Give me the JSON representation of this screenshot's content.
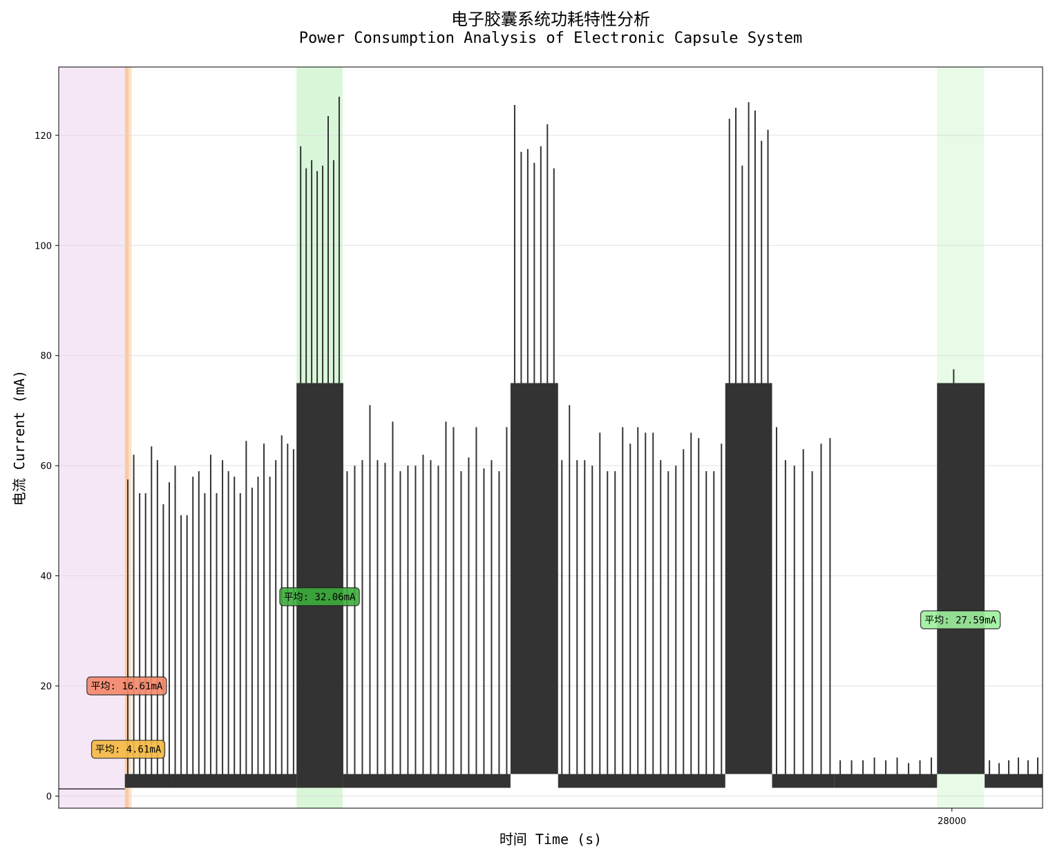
{
  "chart_data": {
    "type": "line",
    "title": "电子胶囊系统功耗特性分析",
    "subtitle": "Power Consumption Analysis of Electronic Capsule System",
    "xlabel": "时间 Time (s)",
    "ylabel": "电流 Current (mA)",
    "ylim": [
      -2.2,
      132.4
    ],
    "yticks": [
      0,
      20,
      40,
      60,
      80,
      100,
      120
    ],
    "xticks": [
      {
        "value": 28000,
        "label": "28000"
      }
    ],
    "xlim": [
      21990,
      28610
    ],
    "grid": true,
    "line_color": "#333333",
    "background_bands": [
      {
        "start": 21990,
        "end": 22435,
        "color": "#f5e6f7",
        "mean_label": ""
      },
      {
        "start": 22435,
        "end": 22480,
        "color": "#fde0c2",
        "mean_label": "平均: 4.61mA",
        "label_value": 8.5,
        "label_color": "#f5b942"
      },
      {
        "start": 22435,
        "end": 22460,
        "color": "#f8c9a8",
        "mean_label": "平均: 16.61mA",
        "label_value": 20,
        "label_color": "#f4876a"
      },
      {
        "start": 23590,
        "end": 23900,
        "color": "#d7f5d7",
        "mean_label": "平均: 32.06mA",
        "label_value": 36.2,
        "label_color": "#3cae3c"
      },
      {
        "start": 27900,
        "end": 28215,
        "color": "#e6fbe6",
        "mean_label": "平均: 27.59mA",
        "label_value": 32,
        "label_color": "#9df09d"
      }
    ],
    "segments": [
      {
        "type": "idle",
        "start": 21990,
        "end": 22435,
        "level": 1.3
      },
      {
        "type": "pulse",
        "start": 22435,
        "end": 23590,
        "base": 1.5,
        "base_top": 4.0,
        "peaks": [
          57.5,
          62,
          55,
          55,
          63.5,
          61,
          53,
          57,
          60,
          51,
          51,
          58,
          59,
          55,
          62,
          55,
          61,
          59,
          58,
          55,
          64.5,
          56,
          58,
          64,
          58,
          61,
          65.5,
          64,
          63
        ]
      },
      {
        "type": "burst",
        "start": 23590,
        "end": 23905,
        "base": 1.5,
        "fill_top": 75,
        "peaks": [
          118,
          114,
          115.5,
          113.5,
          114.5,
          123.5,
          115.5,
          127
        ]
      },
      {
        "type": "pulse",
        "start": 23905,
        "end": 25030,
        "base": 1.5,
        "base_top": 4.0,
        "peaks": [
          59,
          60,
          61,
          71,
          61,
          60.5,
          68,
          59,
          60,
          60,
          62,
          61,
          60,
          68,
          67,
          59,
          61.5,
          67,
          59.5,
          61,
          59,
          67
        ]
      },
      {
        "type": "burst",
        "start": 25030,
        "end": 25350,
        "base": 4,
        "fill_top": 75,
        "peaks": [
          125.5,
          117,
          117.5,
          115,
          118,
          122,
          114
        ]
      },
      {
        "type": "pulse",
        "start": 25350,
        "end": 26475,
        "base": 1.5,
        "base_top": 4.0,
        "peaks": [
          61,
          71,
          61,
          61,
          60,
          66,
          59,
          59,
          67,
          64,
          67,
          66,
          66,
          61,
          59,
          60,
          63,
          66,
          65,
          59,
          59,
          64
        ]
      },
      {
        "type": "burst",
        "start": 26475,
        "end": 26790,
        "base": 4,
        "fill_top": 75,
        "peaks": [
          123,
          125,
          114.5,
          126,
          124.5,
          119,
          121
        ]
      },
      {
        "type": "pulse",
        "start": 26790,
        "end": 27210,
        "base": 1.5,
        "base_top": 4.0,
        "peaks": [
          67,
          61,
          60,
          63,
          59,
          64,
          65
        ]
      },
      {
        "type": "flat",
        "start": 27210,
        "end": 27900,
        "base": 1.5,
        "base_top": 4.0,
        "small_peaks": [
          6.5,
          6.5,
          6.5,
          7,
          6.5,
          7,
          6,
          6.5,
          7
        ]
      },
      {
        "type": "burst",
        "start": 27900,
        "end": 28220,
        "base": 4,
        "fill_top": 75,
        "peaks": [
          77.5
        ]
      },
      {
        "type": "flat",
        "start": 28220,
        "end": 28610,
        "base": 1.5,
        "base_top": 4.0,
        "small_peaks": [
          6.5,
          6,
          6.5,
          7,
          6.5,
          7
        ]
      }
    ]
  }
}
